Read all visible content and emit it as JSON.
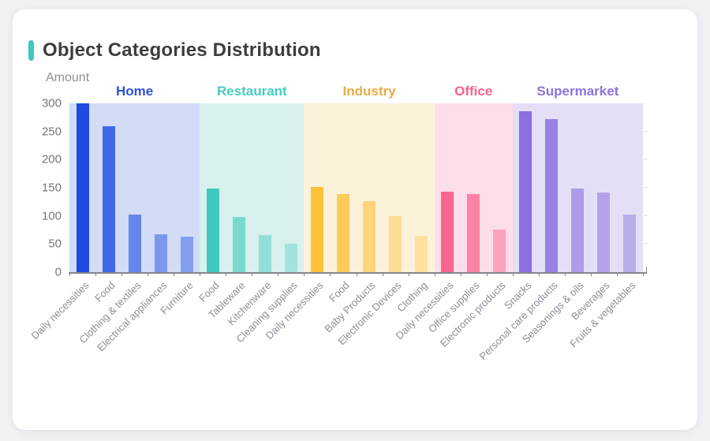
{
  "page": {
    "background": "#f0f1f4",
    "card_background": "#ffffff"
  },
  "header": {
    "title": "Object Categories Distribution",
    "accent_color": "#3ec8bf",
    "title_color": "#3b3d43"
  },
  "chart_data": {
    "type": "bar",
    "title": "Object Categories Distribution",
    "xlabel": "",
    "ylabel": "Amount",
    "ylim": [
      0,
      300
    ],
    "yticks": [
      0,
      50,
      100,
      150,
      200,
      250,
      300
    ],
    "grid": false,
    "legend_position": "none",
    "x_label_rotation_deg": 45,
    "axis_color": "#85868c",
    "y_label_color": "#74757a",
    "x_label_color": "#8d8e98",
    "groups": [
      {
        "name": "Home",
        "label_color": "#2e52dc",
        "bar_color": "#1c4ce1",
        "band_color": "#d2dcf7",
        "bar_opacities": [
          1,
          0.8,
          0.6,
          0.47,
          0.43
        ],
        "categories": [
          "Daily necessities",
          "Food",
          "Clothing & textiles",
          "Electrical appliances",
          "Furniture"
        ],
        "values": [
          300,
          259,
          102,
          68,
          63
        ]
      },
      {
        "name": "Restaurant",
        "label_color": "#45cbbf",
        "bar_color": "#3fc9bc",
        "band_color": "#d8f1ee",
        "bar_opacities": [
          1,
          0.62,
          0.45,
          0.35
        ],
        "categories": [
          "Food",
          "Tableware",
          "Kitchenware",
          "Cleaning supplies"
        ],
        "values": [
          149,
          98,
          66,
          51
        ]
      },
      {
        "name": "Industry",
        "label_color": "#e8ac48",
        "bar_color": "#ffc23c",
        "band_color": "#fcf2da",
        "bar_opacities": [
          1,
          0.8,
          0.62,
          0.45,
          0.37
        ],
        "categories": [
          "Daily necessities",
          "Food",
          "Baby Products",
          "Electronic Devices",
          "Clothing"
        ],
        "values": [
          151,
          139,
          126,
          100,
          64
        ]
      },
      {
        "name": "Office",
        "label_color": "#f7628f",
        "bar_color": "#fb6590",
        "band_color": "#fcdde8",
        "bar_opacities": [
          1,
          0.76,
          0.5
        ],
        "categories": [
          "Daily necessities",
          "Office supplies",
          "Electronic products"
        ],
        "values": [
          143,
          139,
          76
        ]
      },
      {
        "name": "Supermarket",
        "label_color": "#8c73dd",
        "bar_color": "#8b70e0",
        "band_color": "#e4dff6",
        "bar_opacities": [
          1,
          0.85,
          0.6,
          0.54,
          0.45
        ],
        "categories": [
          "Snacks",
          "Personal care products",
          "Seasonings & oils",
          "Beverages",
          "Fruits & vegetables"
        ],
        "values": [
          286,
          272,
          149,
          141,
          102
        ]
      }
    ]
  }
}
